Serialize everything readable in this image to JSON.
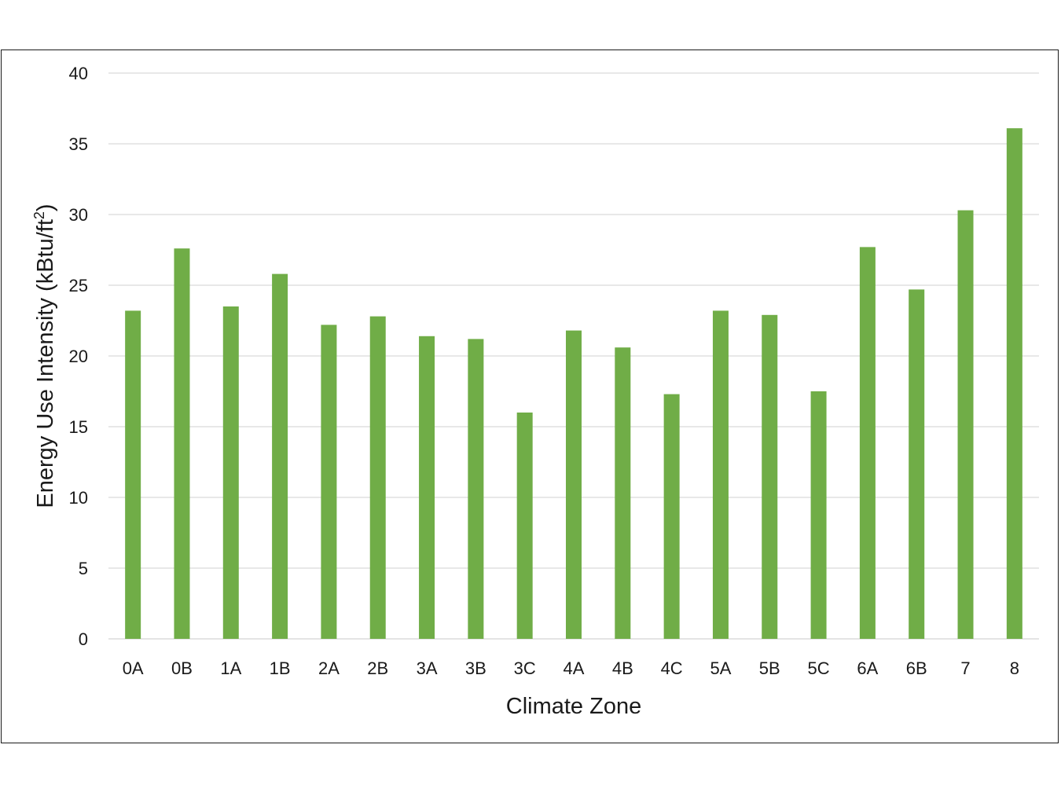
{
  "chart_data": {
    "type": "bar",
    "title": "",
    "xlabel": "Climate Zone",
    "ylabel": {
      "text": "Energy Use Intensity (kBtu/ft",
      "superscript": "2",
      "suffix": ")"
    },
    "ylim": [
      0,
      40
    ],
    "yticks": [
      0,
      5,
      10,
      15,
      20,
      25,
      30,
      35,
      40
    ],
    "grid": true,
    "legend": "none",
    "bar_color": "#70ad47",
    "categories": [
      "0A",
      "0B",
      "1A",
      "1B",
      "2A",
      "2B",
      "3A",
      "3B",
      "3C",
      "4A",
      "4B",
      "4C",
      "5A",
      "5B",
      "5C",
      "6A",
      "6B",
      "7",
      "8"
    ],
    "values": [
      23.2,
      27.6,
      23.5,
      25.8,
      22.2,
      22.8,
      21.4,
      21.2,
      16.0,
      21.8,
      20.6,
      17.3,
      23.2,
      22.9,
      17.5,
      27.7,
      24.7,
      30.3,
      36.1
    ]
  }
}
